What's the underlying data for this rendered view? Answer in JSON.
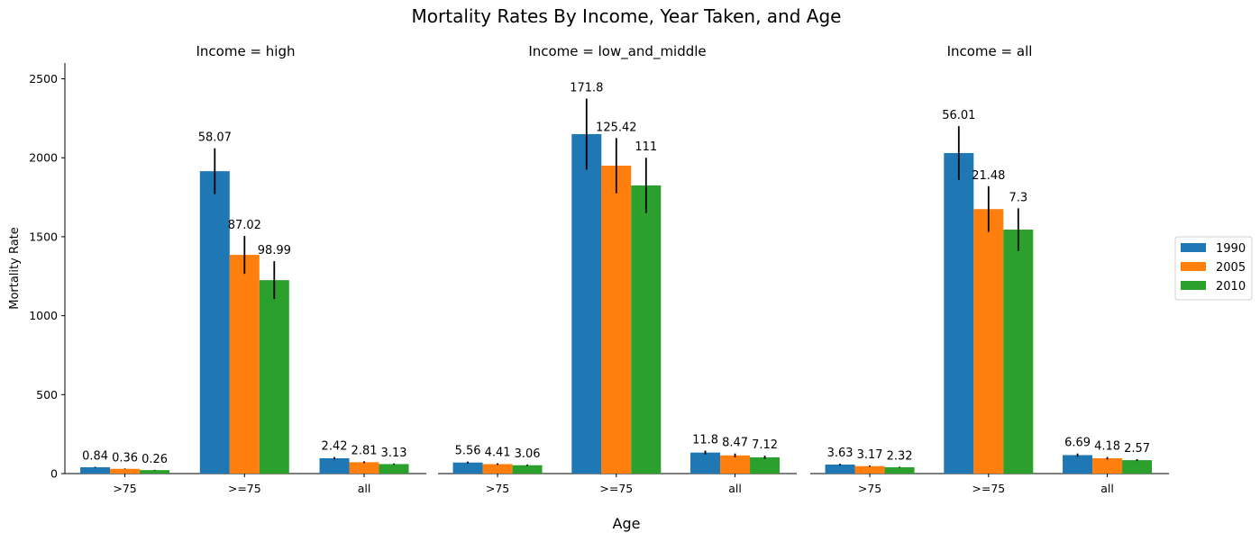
{
  "chart_data": {
    "type": "bar",
    "title": "Mortality Rates By Income, Year Taken, and Age",
    "xlabel": "Age",
    "ylabel": "Mortality Rate",
    "ylim": [
      0,
      2600
    ],
    "yticks": [
      0,
      500,
      1000,
      1500,
      2000,
      2500
    ],
    "grid": false,
    "legend_position": "right",
    "categories": [
      ">75",
      ">=75",
      "all"
    ],
    "series_names": [
      "1990",
      "2005",
      "2010"
    ],
    "colors": [
      "#1f77b4",
      "#ff7f0e",
      "#2ca02c"
    ],
    "panels": [
      {
        "title": "Income = high",
        "values": [
          [
            40,
            30,
            22
          ],
          [
            1915,
            1385,
            1225
          ],
          [
            97,
            72,
            60
          ]
        ],
        "errors": [
          [
            0.84,
            0.36,
            0.26
          ],
          [
            58.07,
            87.02,
            98.99
          ],
          [
            2.42,
            2.81,
            3.13
          ]
        ],
        "error_bars": [
          [
            3,
            2,
            2
          ],
          [
            145,
            120,
            120
          ],
          [
            8,
            6,
            4
          ]
        ]
      },
      {
        "title": "Income = low_and_middle",
        "values": [
          [
            70,
            60,
            53
          ],
          [
            2150,
            1950,
            1825
          ],
          [
            133,
            115,
            103
          ]
        ],
        "errors": [
          [
            5.56,
            4.41,
            3.06
          ],
          [
            171.8,
            125.42,
            111.0
          ],
          [
            11.8,
            8.47,
            7.12
          ]
        ],
        "error_bars": [
          [
            6,
            5,
            4
          ],
          [
            225,
            175,
            175
          ],
          [
            12,
            12,
            10
          ]
        ]
      },
      {
        "title": "Income = all",
        "values": [
          [
            57,
            47,
            40
          ],
          [
            2030,
            1675,
            1545
          ],
          [
            117,
            97,
            85
          ]
        ],
        "errors": [
          [
            3.63,
            3.17,
            2.32
          ],
          [
            56.01,
            21.48,
            7.3
          ],
          [
            6.69,
            4.18,
            2.57
          ]
        ],
        "error_bars": [
          [
            5,
            4,
            3
          ],
          [
            170,
            145,
            135
          ],
          [
            10,
            8,
            6
          ]
        ]
      }
    ]
  }
}
